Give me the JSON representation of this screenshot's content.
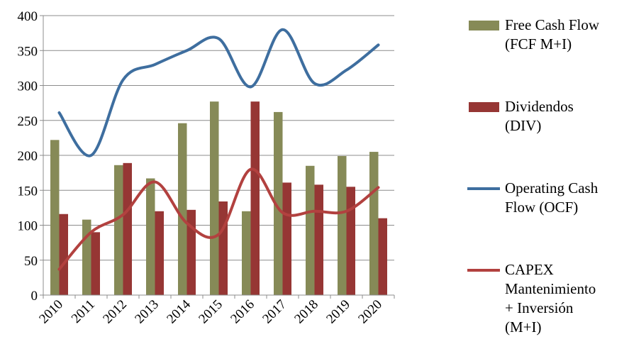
{
  "chart_data": {
    "type": "bar",
    "title": "",
    "xlabel": "",
    "ylabel": "",
    "ylim": [
      0,
      400
    ],
    "yticks": [
      "0",
      "50",
      "100",
      "150",
      "200",
      "250",
      "300",
      "350",
      "400"
    ],
    "grid": "horizontal",
    "legend_position": "right",
    "categories": [
      "2010",
      "2011",
      "2012",
      "2013",
      "2014",
      "2015",
      "2016",
      "2017",
      "2018",
      "2019",
      "2020"
    ],
    "series": [
      {
        "name": "Free Cash Flow (FCF M+I)",
        "name_lines": [
          "Free Cash Flow",
          "(FCF M+I)"
        ],
        "kind": "bar",
        "color": "#868A57",
        "values": [
          222,
          108,
          186,
          167,
          246,
          277,
          120,
          262,
          185,
          199,
          205
        ]
      },
      {
        "name": "Dividendos (DIV)",
        "name_lines": [
          "Dividendos",
          "(DIV)"
        ],
        "kind": "bar",
        "color": "#963634",
        "values": [
          116,
          90,
          189,
          120,
          122,
          134,
          277,
          161,
          158,
          155,
          110
        ]
      },
      {
        "name": "Operating Cash Flow (OCF)",
        "name_lines": [
          "Operating Cash",
          "Flow (OCF)"
        ],
        "kind": "smooth-line",
        "color": "#3E6E9F",
        "values": [
          261,
          200,
          308,
          330,
          350,
          367,
          298,
          380,
          303,
          322,
          358
        ]
      },
      {
        "name": "CAPEX Mantenimiento + Inversión (M+I)",
        "name_lines": [
          "CAPEX",
          "Mantenimiento",
          "+ Inversión",
          "(M+I)"
        ],
        "kind": "smooth-line",
        "color": "#B2413F",
        "values": [
          37,
          90,
          115,
          162,
          103,
          87,
          180,
          118,
          120,
          120,
          154
        ]
      }
    ]
  }
}
